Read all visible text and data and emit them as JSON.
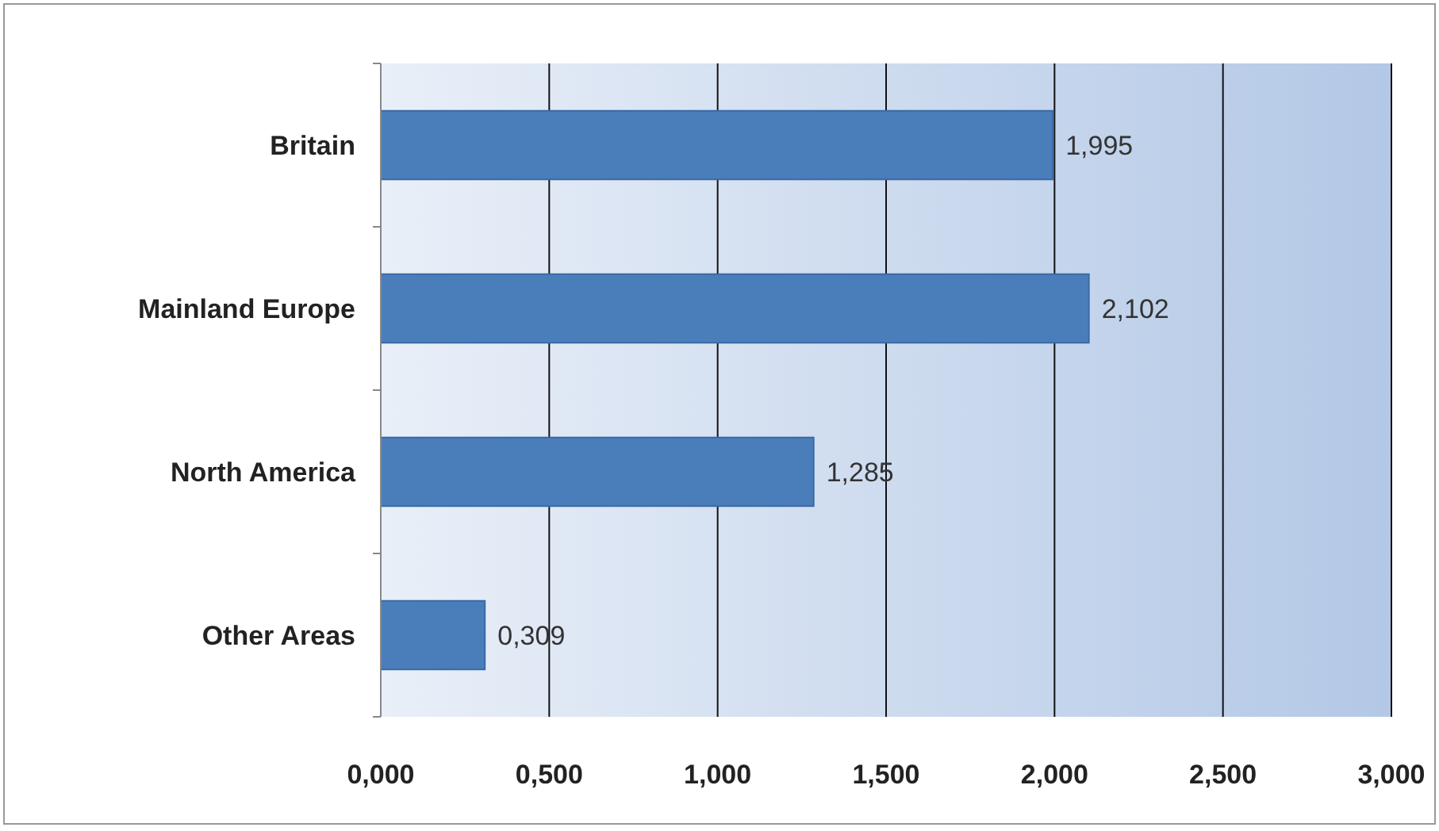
{
  "chart_data": {
    "type": "bar",
    "orientation": "horizontal",
    "categories": [
      "Britain",
      "Mainland Europe",
      "North America",
      "Other Areas"
    ],
    "values": [
      1.995,
      2.102,
      1.285,
      0.309
    ],
    "value_labels": [
      "1,995",
      "2,102",
      "1,285",
      "0,309"
    ],
    "color": "#4a7ebb",
    "xlim": [
      0,
      3
    ],
    "xticks": [
      {
        "value": 0,
        "label": "0,000"
      },
      {
        "value": 0.5,
        "label": "0,500"
      },
      {
        "value": 1,
        "label": "1,000"
      },
      {
        "value": 1.5,
        "label": "1,500"
      },
      {
        "value": 2,
        "label": "2,000"
      },
      {
        "value": 2.5,
        "label": "2,500"
      },
      {
        "value": 3,
        "label": "3,000"
      }
    ],
    "grid": "x"
  }
}
